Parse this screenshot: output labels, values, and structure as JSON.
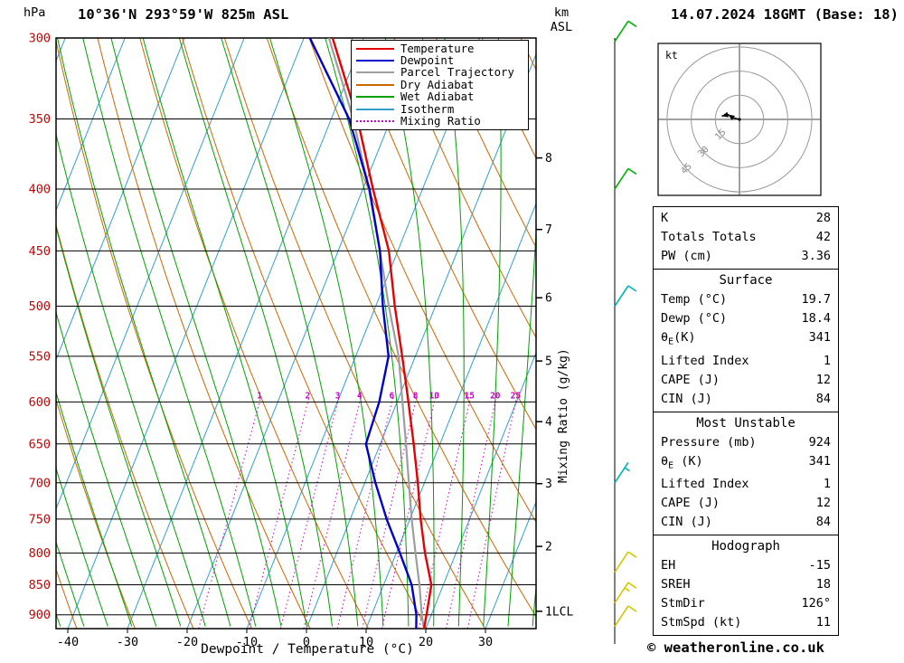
{
  "header": {
    "station_title": "10°36'N 293°59'W 825m ASL",
    "datetime_title": "14.07.2024 18GMT (Base: 18)"
  },
  "footer": {
    "copyright": "© weatheronline.co.uk"
  },
  "axes": {
    "pressure_unit": "hPa",
    "pressure_ticks": [
      300,
      350,
      400,
      450,
      500,
      550,
      600,
      650,
      700,
      750,
      800,
      850,
      900
    ],
    "km_axis_title": "km\nASL",
    "km_ticks": [
      {
        "label": "8",
        "p": 377
      },
      {
        "label": "7",
        "p": 432
      },
      {
        "label": "6",
        "p": 492
      },
      {
        "label": "5",
        "p": 555
      },
      {
        "label": "4",
        "p": 623
      },
      {
        "label": "3",
        "p": 701
      },
      {
        "label": "2",
        "p": 790
      },
      {
        "label": "1LCL",
        "p": 894
      }
    ],
    "temp_ticks": [
      -40,
      -30,
      -20,
      -10,
      0,
      10,
      20,
      30
    ],
    "temp_axis_title": "Dewpoint / Temperature (°C)",
    "mixing_ratio_title": "Mixing Ratio (g/kg)"
  },
  "legend": {
    "items": [
      {
        "label": "Temperature",
        "color": "#e60000",
        "style": "solid"
      },
      {
        "label": "Dewpoint",
        "color": "#0000cc",
        "style": "solid"
      },
      {
        "label": "Parcel Trajectory",
        "color": "#9e9e9e",
        "style": "solid"
      },
      {
        "label": "Dry Adiabat",
        "color": "#cc6600",
        "style": "solid"
      },
      {
        "label": "Wet Adiabat",
        "color": "#00a000",
        "style": "solid"
      },
      {
        "label": "Isotherm",
        "color": "#33a0cc",
        "style": "solid"
      },
      {
        "label": "Mixing Ratio",
        "color": "#cc00cc",
        "style": "dotted"
      }
    ]
  },
  "chart_data": {
    "type": "skewt-log-p",
    "pressure_unit": "hPa",
    "pressure_range": [
      300,
      924
    ],
    "temp_axis_range_at_surface": [
      -45,
      38
    ],
    "pressure_levels": [
      924,
      900,
      850,
      800,
      750,
      700,
      650,
      600,
      550,
      500,
      450,
      400,
      350,
      300
    ],
    "series": [
      {
        "name": "Temperature",
        "color": "#e60000",
        "values": [
          19.7,
          19.2,
          18.0,
          14.8,
          11.8,
          8.9,
          5.6,
          1.9,
          -2.2,
          -6.8,
          -11.5,
          -18.3,
          -25.6,
          -35.2
        ]
      },
      {
        "name": "Dewpoint",
        "color": "#0000cc",
        "values": [
          18.4,
          17.5,
          14.7,
          10.6,
          6.1,
          1.8,
          -2.4,
          -3.0,
          -4.5,
          -8.8,
          -13.0,
          -18.9,
          -27.0,
          -39.0
        ]
      },
      {
        "name": "Parcel Trajectory",
        "color": "#9e9e9e",
        "values": [
          19.7,
          18.4,
          16.0,
          13.2,
          10.3,
          7.4,
          4.3,
          0.9,
          -2.8,
          -7.8,
          -13.0,
          -19.0,
          -26.3,
          -35.8
        ]
      }
    ],
    "mixing_ratio_labels": [
      1,
      2,
      3,
      4,
      6,
      8,
      10,
      15,
      20,
      25
    ],
    "background": {
      "isotherm": {
        "start": -90,
        "end": 40,
        "step": 10,
        "color": "#33a0cc"
      },
      "dry_adiabat": {
        "theta_start": 240,
        "theta_end": 420,
        "step": 10,
        "color": "#cc6600"
      },
      "wet_adiabat": {
        "t0_start": -48,
        "t0_end": 40,
        "step": 4,
        "color": "#00a000"
      },
      "mixing_ratio_color": "#cc00cc"
    }
  },
  "wind_barbs": [
    {
      "p": 302,
      "color": "#00b400",
      "speed": 10
    },
    {
      "p": 400,
      "color": "#00b400",
      "speed": 10
    },
    {
      "p": 500,
      "color": "#00b4b4",
      "speed": 10
    },
    {
      "p": 700,
      "color": "#00b4b4",
      "speed": 5
    },
    {
      "p": 830,
      "color": "#d2c800",
      "speed": 10
    },
    {
      "p": 880,
      "color": "#d2c800",
      "speed": 15
    },
    {
      "p": 920,
      "color": "#d2c800",
      "speed": 10
    }
  ],
  "hodograph": {
    "unit_label": "kt",
    "rings": [
      15,
      30,
      45
    ],
    "trace": [
      [
        0,
        0
      ],
      [
        -4,
        1
      ],
      [
        -7,
        3
      ],
      [
        -11,
        2
      ]
    ]
  },
  "stats_table": {
    "sections": [
      {
        "rows": [
          [
            "K",
            "28"
          ],
          [
            "Totals Totals",
            "42"
          ],
          [
            "PW (cm)",
            "3.36"
          ]
        ]
      },
      {
        "header": "Surface",
        "rows": [
          [
            "Temp (°C)",
            "19.7"
          ],
          [
            "Dewp (°C)",
            "18.4"
          ],
          [
            "θ[E](K)",
            "341"
          ],
          [
            "Lifted Index",
            "1"
          ],
          [
            "CAPE (J)",
            "12"
          ],
          [
            "CIN (J)",
            "84"
          ]
        ]
      },
      {
        "header": "Most Unstable",
        "rows": [
          [
            "Pressure (mb)",
            "924"
          ],
          [
            "θ[E] (K)",
            "341"
          ],
          [
            "Lifted Index",
            "1"
          ],
          [
            "CAPE (J)",
            "12"
          ],
          [
            "CIN (J)",
            "84"
          ]
        ]
      },
      {
        "header": "Hodograph",
        "rows": [
          [
            "EH",
            "-15"
          ],
          [
            "SREH",
            "18"
          ],
          [
            "StmDir",
            "126°"
          ],
          [
            "StmSpd (kt)",
            "11"
          ]
        ]
      }
    ]
  }
}
